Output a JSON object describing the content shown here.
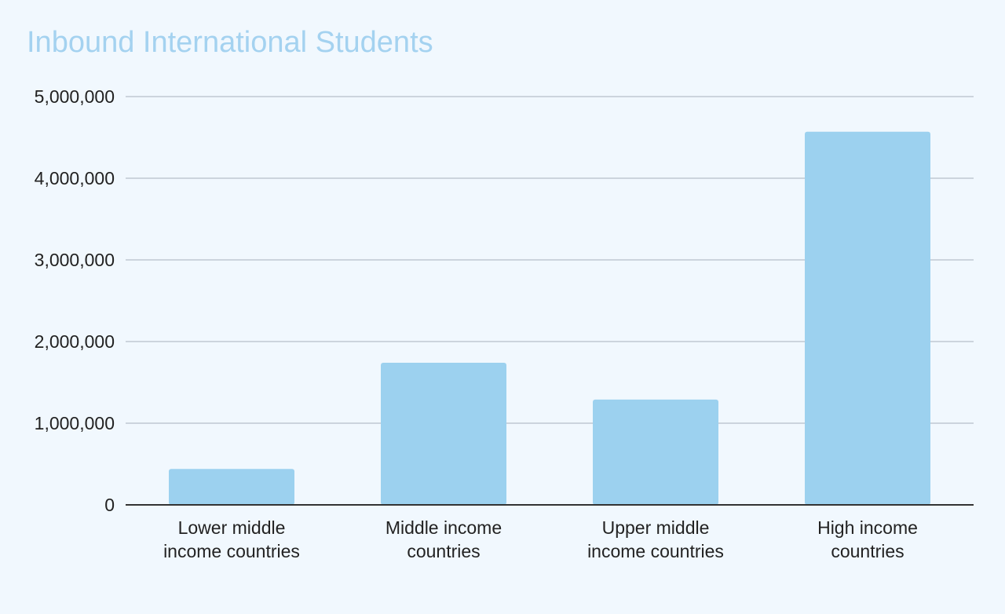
{
  "chart_data": {
    "type": "bar",
    "title": "Inbound International Students",
    "categories": [
      [
        "Lower middle",
        "income countries"
      ],
      [
        "Middle income",
        "countries"
      ],
      [
        "Upper middle",
        "income countries"
      ],
      [
        "High income",
        "countries"
      ]
    ],
    "values": [
      440000,
      1740000,
      1290000,
      4570000
    ],
    "y_ticks": [
      {
        "value": 0,
        "label": "0"
      },
      {
        "value": 1000000,
        "label": "1,000,000"
      },
      {
        "value": 2000000,
        "label": "2,000,000"
      },
      {
        "value": 3000000,
        "label": "3,000,000"
      },
      {
        "value": 4000000,
        "label": "4,000,000"
      },
      {
        "value": 5000000,
        "label": "5,000,000"
      }
    ],
    "xlabel": "",
    "ylabel": "",
    "ylim": [
      0,
      5000000
    ],
    "grid": true,
    "legend": "none",
    "colors": {
      "bar": "#9cd1ef",
      "grid": "#c0c8d2",
      "axis": "#333333",
      "title": "#a4d2f0",
      "background": "#f1f8fe"
    }
  }
}
